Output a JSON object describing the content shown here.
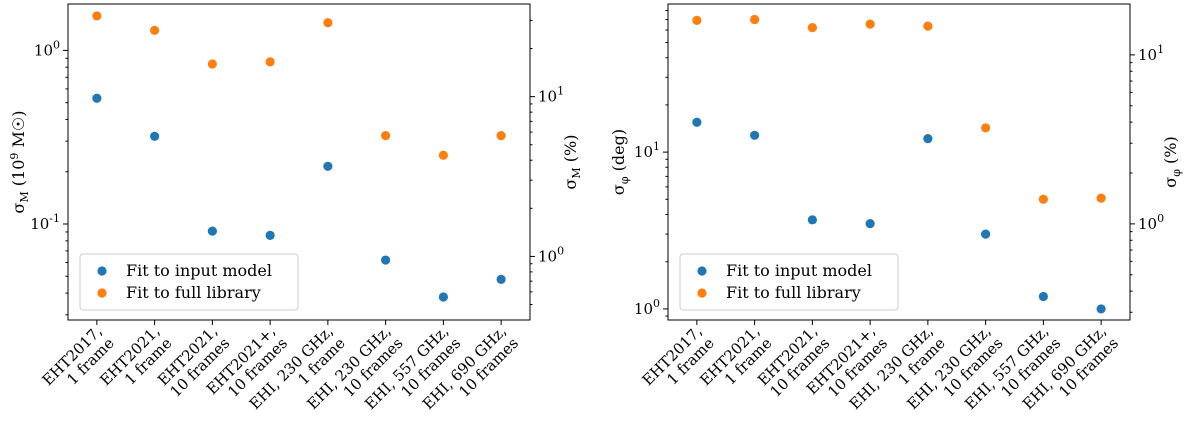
{
  "colors": {
    "series0": "#1f77b4",
    "series1": "#ff7f0e"
  },
  "chart_data": [
    {
      "type": "scatter",
      "categories": [
        [
          "EHT2017,",
          "1 frame"
        ],
        [
          "EHT2021,",
          "1 frame"
        ],
        [
          "EHT2021,",
          "10 frames"
        ],
        [
          "EHT2021+,",
          "10 frames"
        ],
        [
          "EHI, 230 GHz,",
          "1 frame"
        ],
        [
          "EHI, 230 GHz,",
          "10 frames"
        ],
        [
          "EHI, 557 GHz,",
          "10 frames"
        ],
        [
          "EHI, 690 GHz,",
          "10 frames"
        ]
      ],
      "series": [
        {
          "name": "Fit to input model",
          "axis": "left",
          "values": [
            0.53,
            0.32,
            0.091,
            0.086,
            0.215,
            0.062,
            0.038,
            0.048
          ]
        },
        {
          "name": "Fit to full library",
          "axis": "right",
          "values": [
            32,
            26,
            16,
            16.5,
            29,
            5.7,
            4.3,
            5.7
          ]
        }
      ],
      "ylabel": "σ_M (10^9 M☉)",
      "ylabel_right": "σ_M (%)",
      "yscale": "log",
      "ylim": [
        0.028,
        1.85
      ],
      "ylim_right": [
        0.4,
        38
      ],
      "yticks": [
        {
          "value": 1,
          "label": "10^0"
        },
        {
          "value": 0.1,
          "label": "10^-1"
        }
      ],
      "yticks_right": [
        {
          "value": 10,
          "label": "10^1"
        },
        {
          "value": 1,
          "label": "10^0"
        }
      ],
      "legend_loc": "lower-left"
    },
    {
      "type": "scatter",
      "categories": [
        [
          "EHT2017,",
          "1 frame"
        ],
        [
          "EHT2021,",
          "1 frame"
        ],
        [
          "EHT2021,",
          "10 frames"
        ],
        [
          "EHT2021+,",
          "10 frames"
        ],
        [
          "EHI, 230 GHz,",
          "1 frame"
        ],
        [
          "EHI, 230 GHz,",
          "10 frames"
        ],
        [
          "EHI, 557 GHz,",
          "10 frames"
        ],
        [
          "EHI, 690 GHz,",
          "10 frames"
        ]
      ],
      "series": [
        {
          "name": "Fit to input model",
          "axis": "left",
          "values": [
            15.5,
            12.8,
            3.7,
            3.5,
            12.2,
            3.0,
            1.2,
            1.0
          ]
        },
        {
          "name": "Fit to full library",
          "axis": "right",
          "values": [
            16,
            16.2,
            14.5,
            15.2,
            14.8,
            3.7,
            1.4,
            1.42
          ]
        }
      ],
      "ylabel": "σ_φ (deg)",
      "ylabel_right": "σ_φ (%)",
      "yscale": "log",
      "ylim": [
        0.85,
        88
      ],
      "ylim_right": [
        0.27,
        20
      ],
      "yticks": [
        {
          "value": 10,
          "label": "10^1"
        },
        {
          "value": 1,
          "label": "10^0"
        }
      ],
      "yticks_right": [
        {
          "value": 10,
          "label": "10^1"
        },
        {
          "value": 1,
          "label": "10^0"
        }
      ],
      "legend_loc": "lower-left"
    }
  ]
}
